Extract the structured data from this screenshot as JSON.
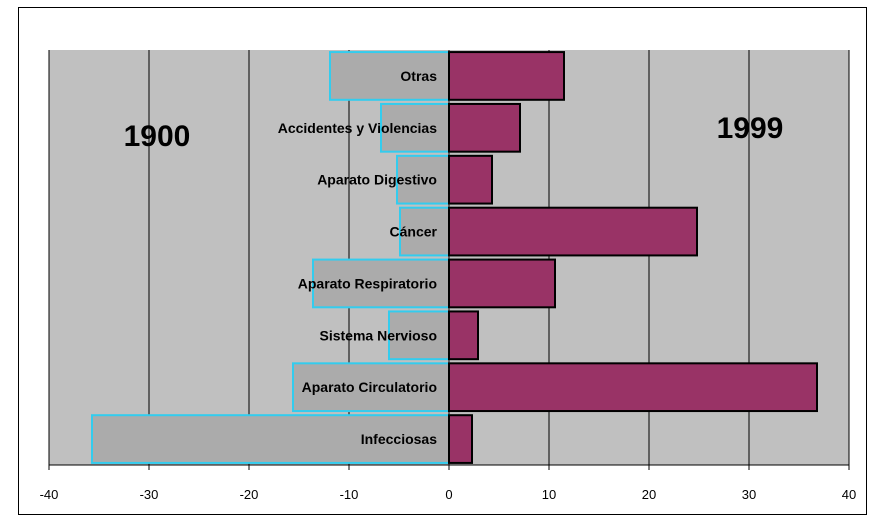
{
  "chart_data": {
    "type": "bar",
    "orientation": "horizontal",
    "layout": "back-to-back",
    "categories": [
      "Infecciosas",
      "Aparato Circulatorio",
      "Sistema Nervioso",
      "Aparato Respiratorio",
      "Cáncer",
      "Aparato Digestivo",
      "Accidentes y Violencias",
      "Otras"
    ],
    "series": [
      {
        "name": "1900",
        "values": [
          -35.7,
          -15.6,
          -6.0,
          -13.6,
          -4.9,
          -5.2,
          -6.8,
          -11.9
        ],
        "color": "#ababab",
        "border_color": "#33ccee"
      },
      {
        "name": "1999",
        "values": [
          2.3,
          36.8,
          2.9,
          10.6,
          24.8,
          4.3,
          7.1,
          11.5
        ],
        "color": "#993366",
        "border_color": "#000000"
      }
    ],
    "xlim": [
      -40,
      40
    ],
    "xticks": [
      -40,
      -30,
      -20,
      -10,
      0,
      10,
      20,
      30,
      40
    ],
    "xtick_labels": [
      "-40",
      "-30",
      "-20",
      "-10",
      "0",
      "10",
      "20",
      "30",
      "40"
    ],
    "grid": "vertical",
    "plot_background": "#c0c0c0",
    "xlabel": "",
    "ylabel": ""
  },
  "annotations": {
    "left_year": "1900",
    "right_year": "1999"
  }
}
